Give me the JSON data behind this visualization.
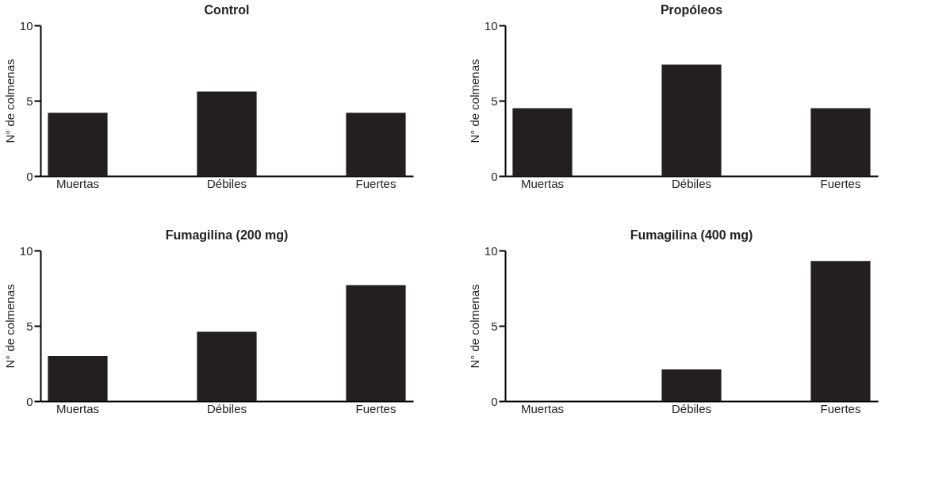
{
  "chart_data": [
    {
      "type": "bar",
      "title": "Control",
      "ylabel": "N° de colmenas",
      "categories": [
        "Muertas",
        "Débiles",
        "Fuertes"
      ],
      "values": [
        4.2,
        5.6,
        4.2
      ],
      "color": "#231f20",
      "ylim": [
        0,
        10
      ],
      "yticks": [
        0,
        5,
        10
      ],
      "grid": false
    },
    {
      "type": "bar",
      "title": "Propóleos",
      "ylabel": "N° de colmenas",
      "categories": [
        "Muertas",
        "Débiles",
        "Fuertes"
      ],
      "values": [
        4.5,
        7.4,
        4.5
      ],
      "color": "#231f20",
      "ylim": [
        0,
        10
      ],
      "yticks": [
        0,
        5,
        10
      ],
      "grid": false
    },
    {
      "type": "bar",
      "title": "Fumagilina (200 mg)",
      "ylabel": "N° de colmenas",
      "categories": [
        "Muertas",
        "Débiles",
        "Fuertes"
      ],
      "values": [
        3.0,
        4.6,
        7.7
      ],
      "color": "#231f20",
      "ylim": [
        0,
        10
      ],
      "yticks": [
        0,
        5,
        10
      ],
      "grid": false
    },
    {
      "type": "bar",
      "title": "Fumagilina (400 mg)",
      "ylabel": "N° de colmenas",
      "categories": [
        "Muertas",
        "Débiles",
        "Fuertes"
      ],
      "values": [
        0,
        2.1,
        9.3
      ],
      "color": "#231f20",
      "ylim": [
        0,
        10
      ],
      "yticks": [
        0,
        5,
        10
      ],
      "grid": false
    }
  ]
}
